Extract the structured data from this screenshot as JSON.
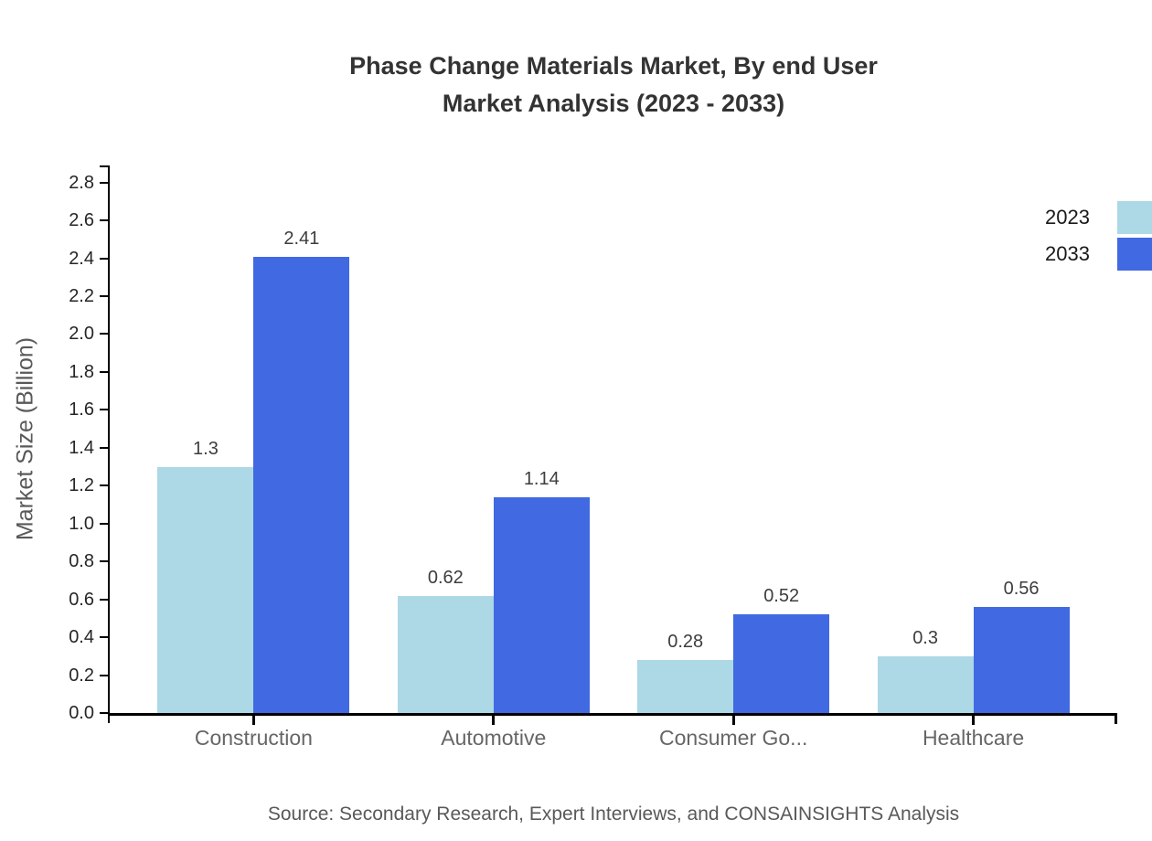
{
  "title": {
    "line1": "Phase Change Materials Market, By end User",
    "line2": "Market Analysis (2023 - 2033)"
  },
  "source": "Source: Secondary Research, Expert Interviews, and CONSAINSIGHTS Analysis",
  "chart_data": {
    "type": "bar",
    "title": "Phase Change Materials Market, By end User Market Analysis (2023 - 2033)",
    "categories": [
      "Construction",
      "Automotive",
      "Consumer Go...",
      "Healthcare"
    ],
    "series": [
      {
        "name": "2023",
        "color": "#ADD8E6",
        "values": [
          1.3,
          0.62,
          0.28,
          0.3
        ]
      },
      {
        "name": "2033",
        "color": "#4169E1",
        "values": [
          2.41,
          1.14,
          0.52,
          0.56
        ]
      }
    ],
    "xlabel": "",
    "ylabel": "Market Size (Billion)",
    "ylim": [
      0,
      2.89
    ],
    "yticks": [
      0,
      0.2,
      0.4,
      0.6,
      0.8,
      1.0,
      1.2,
      1.4,
      1.6,
      1.8,
      2.0,
      2.2,
      2.4,
      2.6,
      2.8
    ],
    "grid": false,
    "legend_position": "top-right",
    "bar_value_labels": true,
    "axis_color": "#000000",
    "tick_label_color": "#262626",
    "category_label_color": "#666666"
  }
}
